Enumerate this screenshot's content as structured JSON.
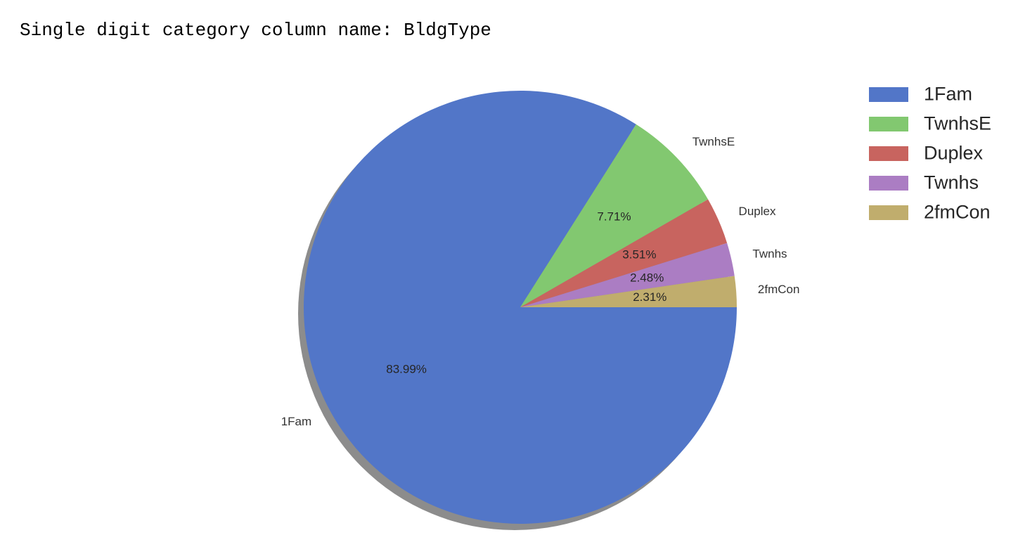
{
  "output": {
    "text": "Single digit category column name: BldgType"
  },
  "chart_data": {
    "type": "pie",
    "categories": [
      "1Fam",
      "TwnhsE",
      "Duplex",
      "Twnhs",
      "2fmCon"
    ],
    "values": [
      83.99,
      7.71,
      3.51,
      2.48,
      2.31
    ],
    "value_labels": [
      "83.99%",
      "7.71%",
      "3.51%",
      "2.48%",
      "2.31%"
    ],
    "colors": [
      "#5276c8",
      "#82c870",
      "#c8645f",
      "#ab7dc3",
      "#c0ad6d"
    ],
    "shadow": true,
    "start_angle_deg": 0,
    "direction": "clockwise",
    "legend": {
      "position": "upper-right",
      "entries": [
        "1Fam",
        "TwnhsE",
        "Duplex",
        "Twnhs",
        "2fmCon"
      ]
    }
  }
}
